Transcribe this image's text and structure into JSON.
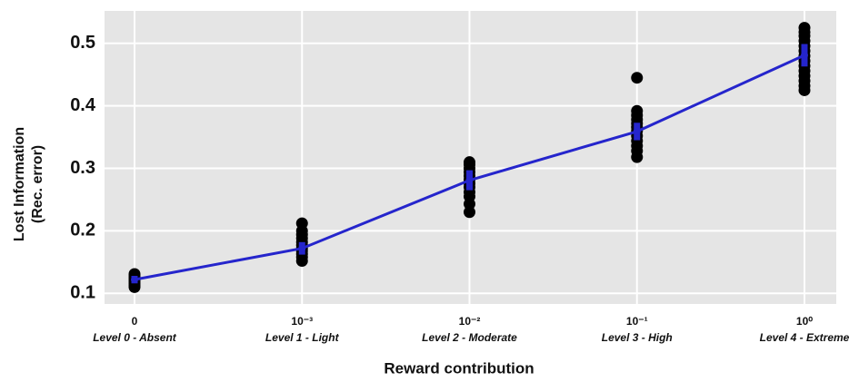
{
  "chart_data": {
    "type": "line",
    "x_label": "Reward contribution",
    "y_label": [
      "Lost Information",
      "(Rec. error)"
    ],
    "categories": [
      "0",
      "10⁻³",
      "10⁻²",
      "10⁻¹",
      "10⁰"
    ],
    "category_levels": [
      "Level 0 - Absent",
      "Level 1 - Light",
      "Level 2 - Moderate",
      "Level 3 - High",
      "Level 4 - Extreme"
    ],
    "values": [
      0.122,
      0.172,
      0.281,
      0.359,
      0.481
    ],
    "errors": [
      0.006,
      0.01,
      0.016,
      0.014,
      0.018
    ],
    "color": "#2525cc",
    "points": [
      [
        0.11,
        0.113,
        0.116,
        0.119,
        0.122,
        0.125,
        0.128,
        0.131
      ],
      [
        0.152,
        0.158,
        0.163,
        0.168,
        0.172,
        0.177,
        0.182,
        0.188,
        0.194,
        0.2,
        0.212
      ],
      [
        0.23,
        0.243,
        0.255,
        0.262,
        0.27,
        0.276,
        0.282,
        0.288,
        0.294,
        0.3,
        0.306,
        0.31
      ],
      [
        0.318,
        0.328,
        0.336,
        0.344,
        0.352,
        0.36,
        0.366,
        0.372,
        0.378,
        0.385,
        0.392,
        0.445
      ],
      [
        0.425,
        0.432,
        0.44,
        0.448,
        0.456,
        0.464,
        0.472,
        0.48,
        0.488,
        0.496,
        0.504,
        0.512,
        0.518,
        0.525
      ]
    ],
    "point_color": "#000000",
    "ylim": [
      0.083,
      0.552
    ],
    "yticks": [
      0.1,
      0.2,
      0.3,
      0.4,
      0.5
    ],
    "grid": true
  }
}
